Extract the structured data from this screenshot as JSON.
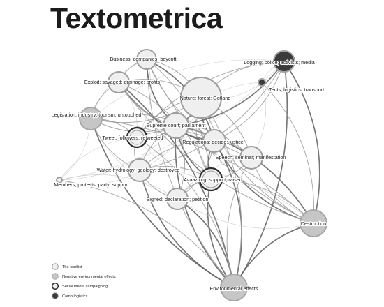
{
  "title": "Textometrica",
  "legend": [
    {
      "category": "conflict",
      "label": "The conflict"
    },
    {
      "category": "negative",
      "label": "Negative environmental effects"
    },
    {
      "category": "social",
      "label": "Social media campaigning"
    },
    {
      "category": "camp",
      "label": "Camp logistics"
    }
  ],
  "nodes": [
    {
      "id": "business",
      "label": "Business; companies; boycott",
      "category": "conflict"
    },
    {
      "id": "exploit",
      "label": "Exploit; savaged; drainage; profits",
      "category": "conflict"
    },
    {
      "id": "nature",
      "label": "Nature; forest; Gotland",
      "category": "conflict"
    },
    {
      "id": "logging",
      "label": "Logging; police; activists; media",
      "category": "camp"
    },
    {
      "id": "tents",
      "label": "Tents; logistics; transport",
      "category": "camp"
    },
    {
      "id": "legislation",
      "label": "Legislation; industry; tourism; untouched",
      "category": "negative"
    },
    {
      "id": "supreme",
      "label": "Supreme court; parliament",
      "category": "conflict"
    },
    {
      "id": "tweet",
      "label": "Tweet; followers; retweeted",
      "category": "social"
    },
    {
      "id": "regulations",
      "label": "Regulations; decide; justice",
      "category": "conflict"
    },
    {
      "id": "speech",
      "label": "Speech; seminar; manifestation",
      "category": "conflict"
    },
    {
      "id": "water",
      "label": "Water; hydrology; geology; destroyed",
      "category": "conflict"
    },
    {
      "id": "avaaz",
      "label": "Avaaz.org; support; raised",
      "category": "social"
    },
    {
      "id": "members",
      "label": "Members; protests; party; support",
      "category": "conflict"
    },
    {
      "id": "signed",
      "label": "Signed; declaration; petition",
      "category": "conflict"
    },
    {
      "id": "destruction",
      "label": "Destruction",
      "category": "negative"
    },
    {
      "id": "environmental",
      "label": "Environmental effects",
      "category": "negative"
    }
  ],
  "edges": [
    [
      "exploit",
      "environmental",
      "strong"
    ],
    [
      "supreme",
      "environmental",
      "strong"
    ],
    [
      "regulations",
      "environmental",
      "strong"
    ],
    [
      "avaaz",
      "environmental",
      "strong"
    ],
    [
      "signed",
      "environmental",
      "strong"
    ],
    [
      "water",
      "environmental",
      "strong"
    ],
    [
      "logging",
      "environmental",
      "strong"
    ],
    [
      "legislation",
      "environmental",
      "strong"
    ],
    [
      "nature",
      "environmental",
      "medium"
    ],
    [
      "business",
      "environmental",
      "medium"
    ],
    [
      "tweet",
      "environmental",
      "medium"
    ],
    [
      "speech",
      "environmental",
      "medium"
    ],
    [
      "members",
      "environmental",
      "medium"
    ],
    [
      "destruction",
      "environmental",
      "strong"
    ],
    [
      "logging",
      "destruction",
      "strong"
    ],
    [
      "regulations",
      "destruction",
      "strong"
    ],
    [
      "supreme",
      "destruction",
      "strong"
    ],
    [
      "speech",
      "destruction",
      "medium"
    ],
    [
      "avaaz",
      "destruction",
      "medium"
    ],
    [
      "nature",
      "destruction",
      "medium"
    ],
    [
      "tents",
      "destruction",
      "medium"
    ],
    [
      "business",
      "destruction",
      "medium"
    ],
    [
      "legislation",
      "destruction",
      "medium"
    ],
    [
      "exploit",
      "destruction",
      "medium"
    ],
    [
      "water",
      "destruction",
      "weak"
    ],
    [
      "signed",
      "destruction",
      "weak"
    ],
    [
      "logging",
      "supreme",
      "strong"
    ],
    [
      "logging",
      "tweet",
      "medium"
    ],
    [
      "logging",
      "regulations",
      "medium"
    ],
    [
      "logging",
      "nature",
      "medium"
    ],
    [
      "logging",
      "water",
      "medium"
    ],
    [
      "logging",
      "legislation",
      "weak"
    ],
    [
      "logging",
      "members",
      "weak"
    ],
    [
      "logging",
      "tents",
      "weak"
    ],
    [
      "tents",
      "nature",
      "weak"
    ],
    [
      "tents",
      "supreme",
      "weak"
    ],
    [
      "tents",
      "speech",
      "weak"
    ],
    [
      "business",
      "supreme",
      "strong"
    ],
    [
      "business",
      "regulations",
      "strong"
    ],
    [
      "business",
      "speech",
      "medium"
    ],
    [
      "business",
      "avaaz",
      "medium"
    ],
    [
      "business",
      "exploit",
      "medium"
    ],
    [
      "business",
      "nature",
      "medium"
    ],
    [
      "business",
      "legislation",
      "weak"
    ],
    [
      "business",
      "tweet",
      "weak"
    ],
    [
      "exploit",
      "regulations",
      "strong"
    ],
    [
      "exploit",
      "nature",
      "medium"
    ],
    [
      "exploit",
      "supreme",
      "medium"
    ],
    [
      "exploit",
      "avaaz",
      "medium"
    ],
    [
      "exploit",
      "legislation",
      "medium"
    ],
    [
      "exploit",
      "tweet",
      "weak"
    ],
    [
      "exploit",
      "speech",
      "weak"
    ],
    [
      "nature",
      "supreme",
      "strong"
    ],
    [
      "nature",
      "regulations",
      "strong"
    ],
    [
      "nature",
      "speech",
      "medium"
    ],
    [
      "nature",
      "avaaz",
      "medium"
    ],
    [
      "nature",
      "legislation",
      "medium"
    ],
    [
      "nature",
      "tweet",
      "medium"
    ],
    [
      "nature",
      "water",
      "weak"
    ],
    [
      "legislation",
      "supreme",
      "medium"
    ],
    [
      "legislation",
      "tweet",
      "medium"
    ],
    [
      "legislation",
      "water",
      "medium"
    ],
    [
      "legislation",
      "regulations",
      "medium"
    ],
    [
      "legislation",
      "signed",
      "weak"
    ],
    [
      "legislation",
      "members",
      "weak"
    ],
    [
      "supreme",
      "regulations",
      "strong"
    ],
    [
      "supreme",
      "tweet",
      "medium"
    ],
    [
      "supreme",
      "avaaz",
      "strong"
    ],
    [
      "supreme",
      "speech",
      "medium"
    ],
    [
      "supreme",
      "water",
      "medium"
    ],
    [
      "supreme",
      "signed",
      "medium"
    ],
    [
      "tweet",
      "water",
      "medium"
    ],
    [
      "tweet",
      "regulations",
      "medium"
    ],
    [
      "tweet",
      "avaaz",
      "weak"
    ],
    [
      "regulations",
      "speech",
      "medium"
    ],
    [
      "regulations",
      "avaaz",
      "strong"
    ],
    [
      "regulations",
      "signed",
      "medium"
    ],
    [
      "regulations",
      "water",
      "medium"
    ],
    [
      "speech",
      "avaaz",
      "medium"
    ],
    [
      "speech",
      "signed",
      "weak"
    ],
    [
      "water",
      "avaaz",
      "medium"
    ],
    [
      "water",
      "signed",
      "medium"
    ],
    [
      "water",
      "members",
      "weak"
    ],
    [
      "avaaz",
      "signed",
      "medium"
    ],
    [
      "members",
      "tweet",
      "weak"
    ],
    [
      "members",
      "supreme",
      "weak"
    ],
    [
      "members",
      "signed",
      "weak"
    ]
  ]
}
